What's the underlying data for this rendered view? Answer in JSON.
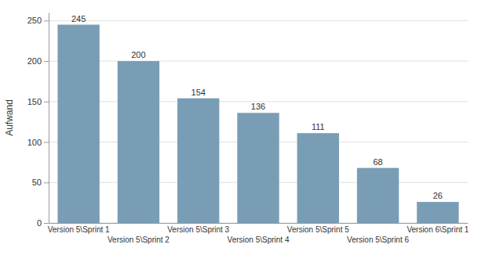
{
  "chart_data": {
    "type": "bar",
    "categories": [
      "Version 5\\Sprint 1",
      "Version 5\\Sprint 2",
      "Version 5\\Sprint 3",
      "Version 5\\Sprint 4",
      "Version 5\\Sprint 5",
      "Version 5\\Sprint 6",
      "Version 6\\Sprint 1"
    ],
    "values": [
      245,
      200,
      154,
      136,
      111,
      68,
      26
    ],
    "color": "#7a9db6",
    "ylabel": "Aufwand",
    "ylim": [
      0,
      260
    ],
    "yticks": [
      0,
      50,
      100,
      150,
      200,
      250
    ],
    "grid": true,
    "data_labels": true
  }
}
